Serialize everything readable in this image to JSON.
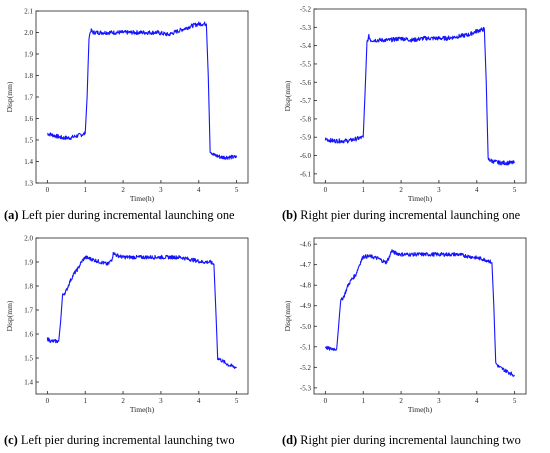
{
  "captions": [
    {
      "tag": "(a)",
      "text": "Left pier during incremental launching one"
    },
    {
      "tag": "(b)",
      "text": "Right pier during incremental launching one"
    },
    {
      "tag": "(c)",
      "text": "Left pier during incremental launching two"
    },
    {
      "tag": "(d)",
      "text": "Right pier during incremental launching two"
    }
  ],
  "colors": {
    "series": "#1414ff",
    "axis": "#222222"
  },
  "chart_data": [
    {
      "type": "line",
      "xlabel": "Time(h)",
      "ylabel": "Disp(mm)",
      "xlim": [
        -0.3,
        5.3
      ],
      "ylim": [
        1.3,
        2.1
      ],
      "xticks": [
        0,
        1,
        2,
        3,
        4,
        5
      ],
      "yticks": [
        1.3,
        1.4,
        1.5,
        1.6,
        1.7,
        1.8,
        1.9,
        2.0,
        2.1
      ],
      "grid": false,
      "series": [
        {
          "x": [
            0.0,
            0.2,
            0.4,
            0.6,
            0.8,
            1.0,
            1.05,
            1.1,
            1.15,
            1.2,
            1.4,
            1.7,
            2.0,
            2.3,
            2.6,
            2.9,
            3.2,
            3.5,
            3.8,
            4.0,
            4.2,
            4.25,
            4.3,
            4.4,
            4.6,
            4.8,
            5.0
          ],
          "y": [
            1.53,
            1.52,
            1.51,
            1.51,
            1.52,
            1.53,
            1.7,
            1.98,
            2.01,
            2.0,
            2.0,
            2.0,
            2.0,
            2.0,
            2.0,
            2.0,
            1.99,
            2.01,
            2.03,
            2.04,
            2.04,
            1.8,
            1.45,
            1.43,
            1.42,
            1.42,
            1.42
          ]
        }
      ]
    },
    {
      "type": "line",
      "xlabel": "Time(h)",
      "ylabel": "Disp(mm)",
      "xlim": [
        -0.3,
        5.3
      ],
      "ylim": [
        -6.15,
        -5.2
      ],
      "xticks": [
        0,
        1,
        2,
        3,
        4,
        5
      ],
      "yticks": [
        -6.1,
        -6.0,
        -5.9,
        -5.8,
        -5.7,
        -5.6,
        -5.5,
        -5.4,
        -5.3,
        -5.2
      ],
      "grid": false,
      "series": [
        {
          "x": [
            0.0,
            0.2,
            0.4,
            0.6,
            0.8,
            1.0,
            1.05,
            1.1,
            1.15,
            1.2,
            1.4,
            1.7,
            2.0,
            2.3,
            2.6,
            2.9,
            3.2,
            3.5,
            3.8,
            4.0,
            4.2,
            4.25,
            4.3,
            4.4,
            4.6,
            4.8,
            5.0
          ],
          "y": [
            -5.91,
            -5.92,
            -5.92,
            -5.92,
            -5.91,
            -5.9,
            -5.65,
            -5.38,
            -5.35,
            -5.37,
            -5.37,
            -5.37,
            -5.36,
            -5.37,
            -5.36,
            -5.36,
            -5.36,
            -5.35,
            -5.34,
            -5.32,
            -5.31,
            -5.6,
            -6.02,
            -6.03,
            -6.04,
            -6.04,
            -6.04
          ]
        }
      ]
    },
    {
      "type": "line",
      "xlabel": "Time(h)",
      "ylabel": "Disp(mm)",
      "xlim": [
        -0.3,
        5.3
      ],
      "ylim": [
        1.35,
        2.0
      ],
      "xticks": [
        0,
        1,
        2,
        3,
        4,
        5
      ],
      "yticks": [
        1.4,
        1.5,
        1.6,
        1.7,
        1.8,
        1.9,
        2.0
      ],
      "grid": false,
      "series": [
        {
          "x": [
            0.0,
            0.1,
            0.2,
            0.3,
            0.35,
            0.4,
            0.5,
            0.6,
            0.7,
            0.8,
            0.9,
            1.0,
            1.2,
            1.4,
            1.6,
            1.7,
            1.75,
            1.8,
            2.0,
            2.3,
            2.6,
            2.9,
            3.2,
            3.5,
            3.8,
            4.1,
            4.3,
            4.4,
            4.45,
            4.5,
            4.6,
            4.8,
            5.0
          ],
          "y": [
            1.58,
            1.57,
            1.57,
            1.57,
            1.65,
            1.76,
            1.78,
            1.82,
            1.85,
            1.87,
            1.9,
            1.92,
            1.91,
            1.9,
            1.89,
            1.91,
            1.94,
            1.93,
            1.92,
            1.92,
            1.92,
            1.92,
            1.92,
            1.92,
            1.91,
            1.9,
            1.9,
            1.89,
            1.7,
            1.5,
            1.49,
            1.47,
            1.46
          ]
        }
      ]
    },
    {
      "type": "line",
      "xlabel": "Time(h)",
      "ylabel": "Disp(mm)",
      "xlim": [
        -0.3,
        5.3
      ],
      "ylim": [
        -5.33,
        -4.57
      ],
      "xticks": [
        0,
        1,
        2,
        3,
        4,
        5
      ],
      "yticks": [
        -5.3,
        -5.2,
        -5.1,
        -5.0,
        -4.9,
        -4.8,
        -4.7,
        -4.6
      ],
      "grid": false,
      "series": [
        {
          "x": [
            0.0,
            0.1,
            0.2,
            0.3,
            0.35,
            0.4,
            0.5,
            0.6,
            0.7,
            0.8,
            0.9,
            1.0,
            1.2,
            1.4,
            1.6,
            1.7,
            1.75,
            1.8,
            2.0,
            2.3,
            2.6,
            2.9,
            3.2,
            3.5,
            3.8,
            4.1,
            4.3,
            4.4,
            4.45,
            4.5,
            4.6,
            4.8,
            5.0
          ],
          "y": [
            -5.1,
            -5.11,
            -5.11,
            -5.11,
            -5.0,
            -4.88,
            -4.85,
            -4.8,
            -4.77,
            -4.75,
            -4.7,
            -4.66,
            -4.66,
            -4.67,
            -4.69,
            -4.66,
            -4.63,
            -4.64,
            -4.65,
            -4.65,
            -4.65,
            -4.65,
            -4.65,
            -4.65,
            -4.66,
            -4.67,
            -4.68,
            -4.69,
            -4.9,
            -5.18,
            -5.2,
            -5.22,
            -5.24
          ]
        }
      ]
    }
  ]
}
